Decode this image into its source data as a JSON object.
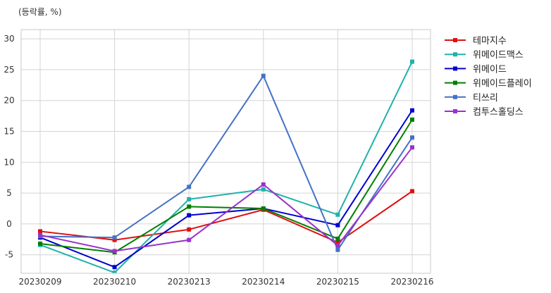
{
  "chart_data": {
    "type": "line",
    "unit_label": "(등락률, %)",
    "categories": [
      "20230209",
      "20230210",
      "20230213",
      "20230214",
      "20230215",
      "20230216"
    ],
    "ylim": [
      -8,
      31.5
    ],
    "yticks": [
      -5,
      0,
      5,
      10,
      15,
      20,
      25,
      30
    ],
    "grid": true,
    "legend_position": "top-right outside",
    "series": [
      {
        "name": "테마지수",
        "color": "#e01010",
        "values": [
          -1.2,
          -2.6,
          -0.9,
          2.3,
          -3.0,
          5.3
        ]
      },
      {
        "name": "위메이드맥스",
        "color": "#20b2aa",
        "values": [
          -3.4,
          -7.9,
          4.0,
          5.6,
          1.5,
          26.3
        ]
      },
      {
        "name": "위메이드",
        "color": "#0000d0",
        "values": [
          -2.2,
          -7.0,
          1.4,
          2.5,
          -0.2,
          18.4
        ]
      },
      {
        "name": "위메이드플레이",
        "color": "#008000",
        "values": [
          -3.2,
          -4.6,
          2.8,
          2.5,
          -2.4,
          16.9
        ]
      },
      {
        "name": "티쓰리",
        "color": "#4472c4",
        "values": [
          -2.0,
          -2.2,
          6.0,
          24.0,
          -4.2,
          14.0
        ]
      },
      {
        "name": "컴투스홀딩스",
        "color": "#9932cc",
        "values": [
          -1.8,
          -4.4,
          -2.6,
          6.4,
          -3.5,
          12.4
        ]
      }
    ]
  }
}
